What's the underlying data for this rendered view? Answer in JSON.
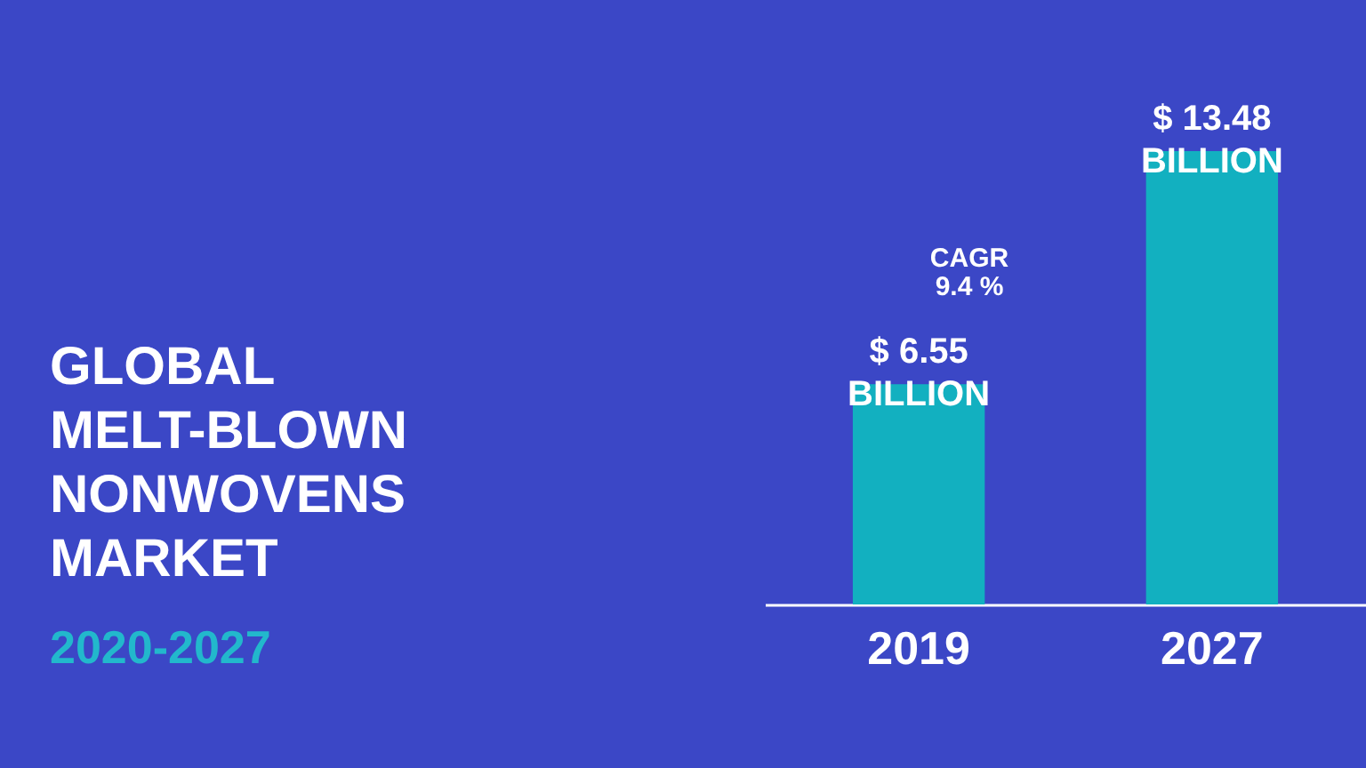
{
  "chart_data": {
    "type": "bar",
    "title": "GLOBAL MELT-BLOWN NONWOVENS MARKET",
    "subtitle": "2020-2027",
    "categories": [
      "2019",
      "2027"
    ],
    "values": [
      6.55,
      13.48
    ],
    "color": "#12b0c0",
    "value_labels": [
      "$ 6.55 BILLION",
      "$ 13.48 BILLION"
    ],
    "annotations": [
      "CAGR 9.4 %"
    ]
  }
}
